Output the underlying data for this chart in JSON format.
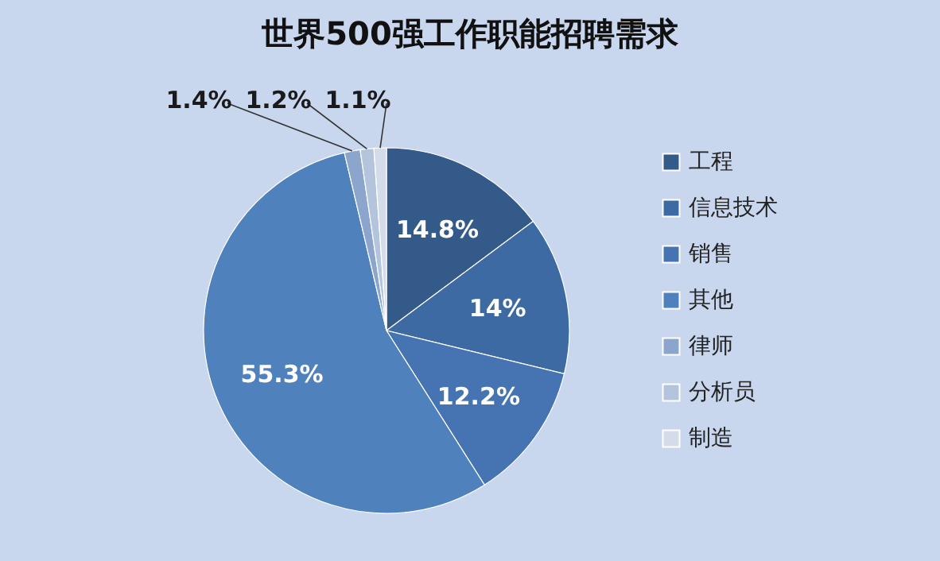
{
  "chart_data": {
    "type": "pie",
    "title": "世界500强工作职能招聘需求",
    "categories": [
      "工程",
      "信息技术",
      "销售",
      "其他",
      "律师",
      "分析员",
      "制造"
    ],
    "values": [
      14.8,
      14,
      12.2,
      55.3,
      1.4,
      1.2,
      1.1
    ],
    "colors": [
      "#345a8a",
      "#3e6aa3",
      "#4674b3",
      "#4f81bd",
      "#8ba5cc",
      "#b5c4dd",
      "#d4dcea"
    ],
    "value_labels": [
      "14.8%",
      "14%",
      "12.2%",
      "55.3%",
      "1.4%",
      "1.2%",
      "1.1%"
    ],
    "legend": "right"
  }
}
